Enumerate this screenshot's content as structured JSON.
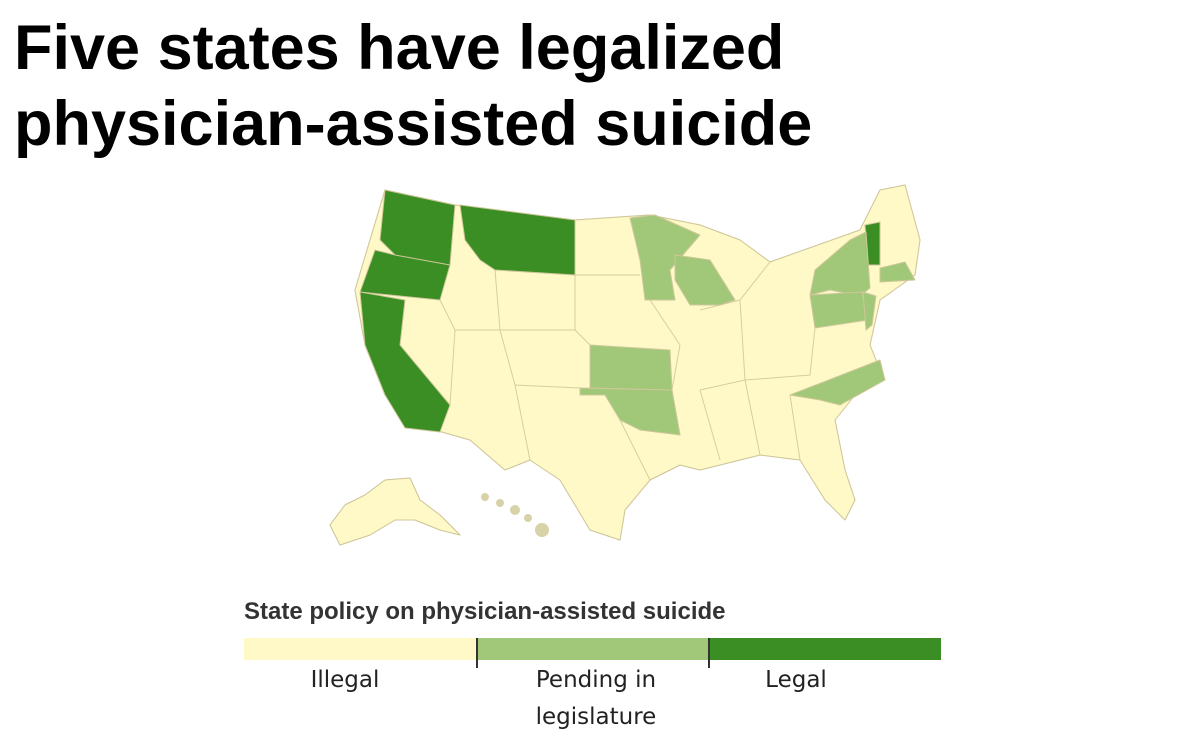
{
  "title": "Five states have legalized physician-assisted suicide",
  "legend": {
    "title": "State policy on physician-assisted suicide",
    "items": [
      {
        "label": "Illegal",
        "color": "#fff9c8"
      },
      {
        "label": "Pending in legislature",
        "color": "#a1c878"
      },
      {
        "label": "Legal",
        "color": "#3a8e24"
      }
    ]
  }
}
